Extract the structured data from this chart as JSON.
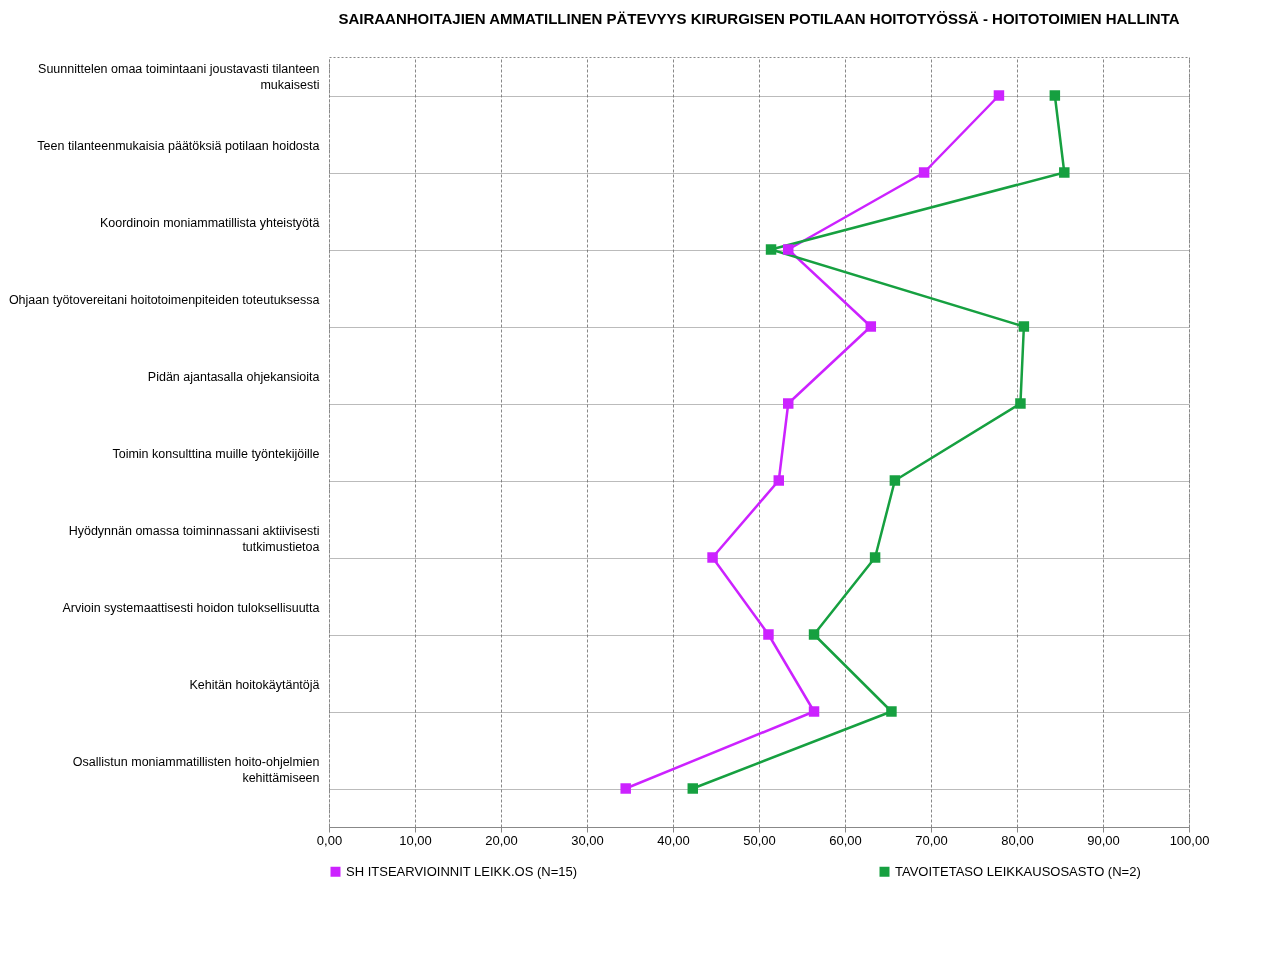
{
  "chart_data": {
    "type": "line",
    "orientation": "horizontal",
    "title": "SAIRAANHOITAJIEN AMMATILLINEN PÄTEVYYS KIRURGISEN POTILAAN HOITOTYÖSSÄ - HOITOTOIMIEN HALLINTA",
    "categories": [
      "Suunnittelen omaa toimintaani joustavasti tilanteen mukaisesti",
      "Teen tilanteenmukaisia päätöksiä potilaan hoidosta",
      "Koordinoin moniammatillista yhteistyötä",
      "Ohjaan työtovereitani hoitotoimenpiteiden toteutuksessa",
      "Pidän ajantasalla ohjekansioita",
      "Toimin konsulttina muille työntekijöille",
      "Hyödynnän omassa toiminnassani aktiivisesti tutkimustietoa",
      "Arvioin systemaattisesti hoidon tuloksellisuutta",
      "Kehitän hoitokäytäntöjä",
      "Osallistun moniammatillisten hoito-ohjelmien kehittämiseen"
    ],
    "series": [
      {
        "name": "SH ITSEARVIOINNIT LEIKK.OS (N=15)",
        "color": "#cc22ff",
        "values": [
          77.9,
          69.2,
          53.4,
          63.0,
          53.4,
          52.3,
          44.6,
          51.1,
          56.4,
          34.5
        ]
      },
      {
        "name": "TAVOITETASO LEIKKAUSOSASTO (N=2)",
        "color": "#16a040",
        "values": [
          84.4,
          85.5,
          51.4,
          80.8,
          80.4,
          65.8,
          63.5,
          56.4,
          65.4,
          42.3
        ]
      }
    ],
    "xlim": [
      0,
      100
    ],
    "xticks": [
      {
        "value": 0,
        "label": "0,00"
      },
      {
        "value": 10,
        "label": "10,00"
      },
      {
        "value": 20,
        "label": "20,00"
      },
      {
        "value": 30,
        "label": "30,00"
      },
      {
        "value": 40,
        "label": "40,00"
      },
      {
        "value": 50,
        "label": "50,00"
      },
      {
        "value": 60,
        "label": "60,00"
      },
      {
        "value": 70,
        "label": "70,00"
      },
      {
        "value": 80,
        "label": "80,00"
      },
      {
        "value": 90,
        "label": "90,00"
      },
      {
        "value": 100,
        "label": "100,00"
      }
    ],
    "grid": true,
    "legend": "bottom",
    "marker": "square",
    "line_style": "solid"
  }
}
